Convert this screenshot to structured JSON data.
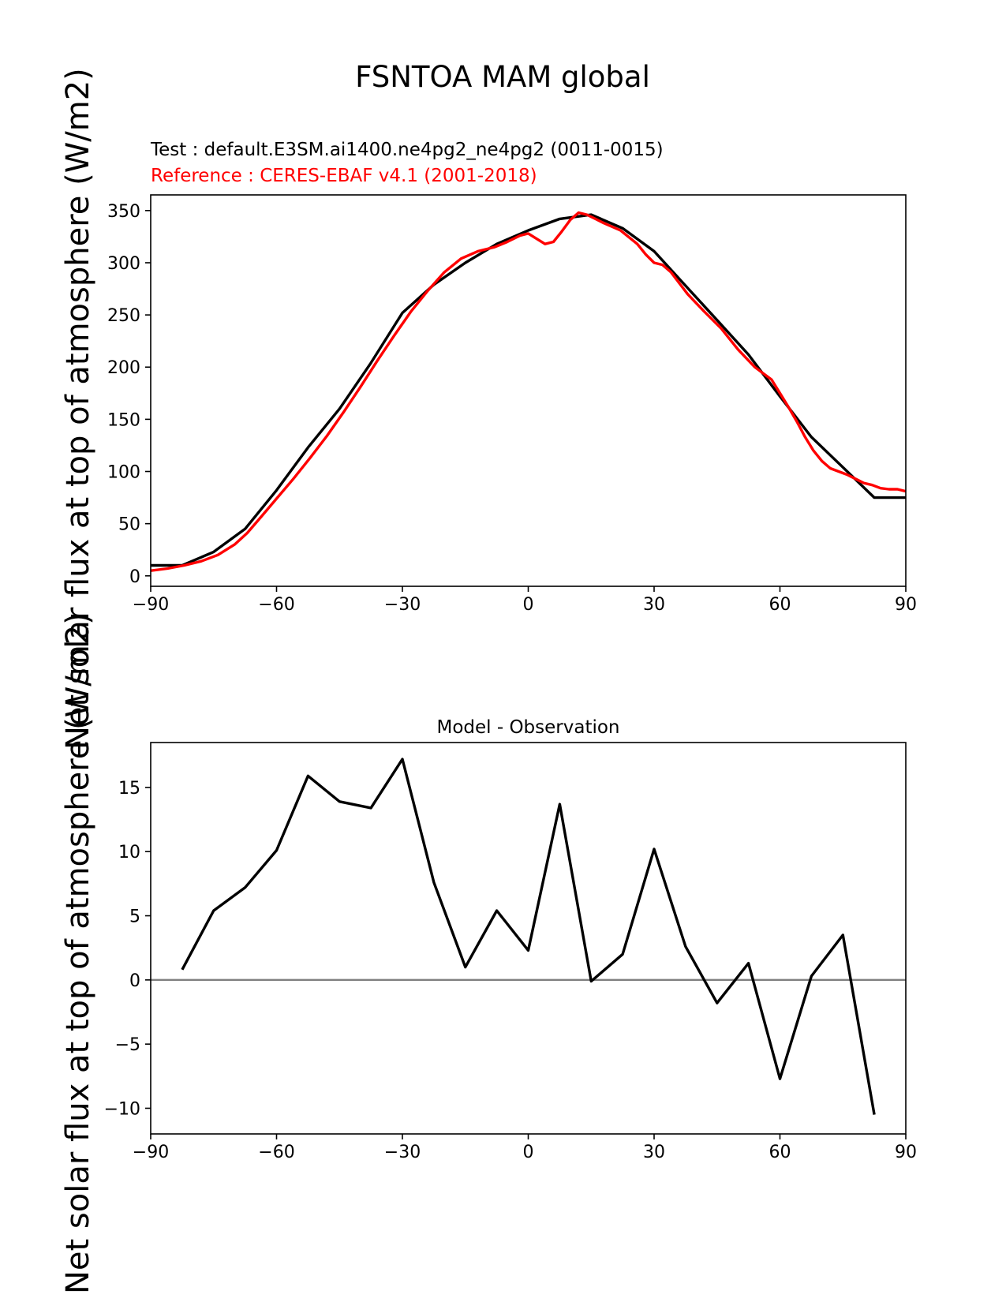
{
  "figure": {
    "title": "FSNTOA MAM global",
    "test_label": "Test : default.E3SM.ai1400.ne4pg2_ne4pg2 (0011-0015)",
    "reference_label": "Reference : CERES-EBAF v4.1 (2001-2018)",
    "ylabel": "Net solar flux at top of atmosphere (W/m2)"
  },
  "colors": {
    "test": "#000000",
    "reference": "#ff0000",
    "zero_line": "#808080"
  },
  "chart_data": [
    {
      "type": "line",
      "title": "",
      "xlabel": "",
      "ylabel": "Net solar flux at top of atmosphere (W/m2)",
      "xlim": [
        -90,
        90
      ],
      "ylim": [
        -10,
        365
      ],
      "xticks": [
        -90,
        -60,
        -30,
        0,
        30,
        60,
        90
      ],
      "yticks": [
        0,
        50,
        100,
        150,
        200,
        250,
        300,
        350
      ],
      "grid": false,
      "series": [
        {
          "name": "Test",
          "color": "#000000",
          "x": [
            -90,
            -82.5,
            -75,
            -67.5,
            -60,
            -52.5,
            -45,
            -37.5,
            -30,
            -22.5,
            -15,
            -7.5,
            0,
            7.5,
            15,
            22.5,
            30,
            37.5,
            45,
            52.5,
            60,
            67.5,
            75,
            82.5,
            90
          ],
          "y": [
            10,
            10,
            23,
            45,
            82,
            123,
            160,
            204,
            252,
            279,
            300,
            318,
            331,
            342,
            346,
            333,
            311,
            278,
            245,
            212,
            172,
            133,
            104,
            75,
            75
          ]
        },
        {
          "name": "Reference",
          "color": "#ff0000",
          "x": [
            -90,
            -86,
            -82,
            -78,
            -74,
            -70,
            -67,
            -64,
            -60,
            -56,
            -52,
            -48,
            -44,
            -40,
            -36,
            -32,
            -28,
            -24,
            -20,
            -16,
            -12,
            -8,
            -5,
            -2,
            0,
            2,
            4,
            6,
            8,
            10,
            12,
            14,
            16,
            18,
            22,
            26,
            28,
            30,
            32,
            34,
            38,
            42,
            46,
            50,
            54,
            58,
            60,
            62,
            64,
            66,
            68,
            70,
            72,
            74,
            76,
            78,
            80,
            82,
            84,
            86,
            88,
            90
          ],
          "y": [
            5,
            7,
            10,
            14,
            20,
            30,
            41,
            55,
            74,
            93,
            113,
            134,
            157,
            181,
            206,
            230,
            253,
            273,
            291,
            304,
            311,
            315,
            320,
            326,
            328,
            323,
            318,
            320,
            330,
            341,
            348,
            346,
            342,
            338,
            331,
            318,
            308,
            300,
            298,
            291,
            270,
            253,
            237,
            217,
            200,
            188,
            175,
            162,
            148,
            133,
            120,
            110,
            103,
            100,
            97,
            93,
            89,
            87,
            84,
            83,
            83,
            81
          ]
        }
      ]
    },
    {
      "type": "line",
      "title": "Model - Observation",
      "xlabel": "",
      "ylabel": "Net solar flux at top of atmosphere (W/m2)",
      "xlim": [
        -90,
        90
      ],
      "ylim": [
        -12,
        18.5
      ],
      "xticks": [
        -90,
        -60,
        -30,
        0,
        30,
        60,
        90
      ],
      "yticks": [
        -10,
        -5,
        0,
        5,
        10,
        15
      ],
      "grid": false,
      "zero_line": 0,
      "series": [
        {
          "name": "",
          "color": "#000000",
          "x": [
            -82.5,
            -75,
            -67.5,
            -60,
            -52.5,
            -45,
            -37.5,
            -30,
            -22.5,
            -15,
            -7.5,
            0,
            7.5,
            15,
            22.5,
            30,
            37.5,
            45,
            52.5,
            60,
            67.5,
            75,
            82.5
          ],
          "y": [
            0.8,
            5.4,
            7.2,
            10.1,
            15.9,
            13.9,
            13.4,
            17.2,
            7.6,
            1.0,
            5.4,
            2.3,
            13.7,
            -0.1,
            2.0,
            10.2,
            2.6,
            -1.8,
            1.3,
            -7.7,
            0.3,
            3.5,
            -10.5
          ]
        }
      ]
    }
  ]
}
